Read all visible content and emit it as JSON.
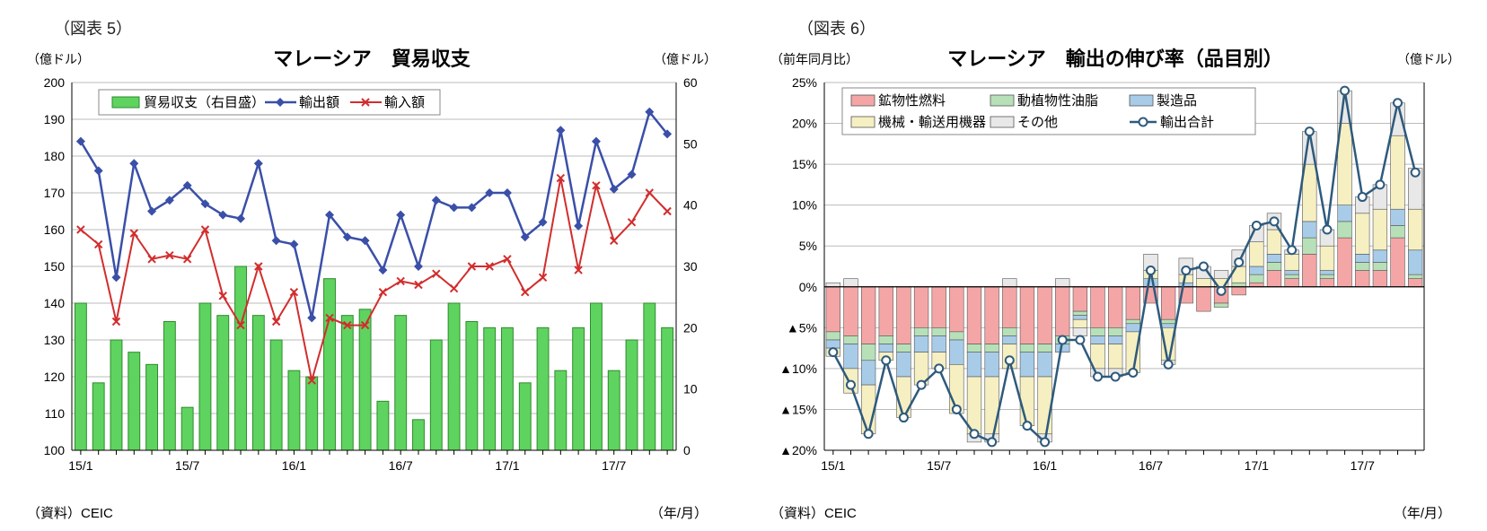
{
  "left": {
    "figLabel": "（図表 5）",
    "title": "マレーシア　貿易収支",
    "yLeftLabel": "（億ドル）",
    "yRightLabel": "（億ドル）",
    "source": "（資料）CEIC",
    "xUnit": "（年/月）",
    "legend": {
      "bars": "貿易収支（右目盛）",
      "exports": "輸出額",
      "imports": "輸入額"
    },
    "xTicks": [
      "15/1",
      "15/7",
      "16/1",
      "16/7",
      "17/1",
      "17/7"
    ],
    "xTickIdx": [
      0,
      6,
      12,
      18,
      24,
      30
    ],
    "yLeft": {
      "min": 100,
      "max": 200,
      "step": 10
    },
    "yRight": {
      "min": 0,
      "max": 60,
      "step": 10
    },
    "n": 34,
    "colors": {
      "bar": "#5fd35f",
      "barBorder": "#2e8b2e",
      "exports": "#3a4fa8",
      "exportsMarker": "#3a4fa8",
      "imports": "#d22d2d",
      "grid": "#bfbfbf",
      "bg": "#ffffff"
    },
    "bars": [
      24,
      11,
      18,
      16,
      14,
      21,
      7,
      24,
      22,
      30,
      22,
      18,
      13,
      12,
      28,
      22,
      23,
      8,
      22,
      5,
      18,
      24,
      21,
      20,
      20,
      11,
      20,
      13,
      20,
      24,
      13,
      18,
      24,
      20
    ],
    "exports": [
      184,
      176,
      147,
      178,
      165,
      168,
      172,
      167,
      164,
      163,
      178,
      157,
      156,
      136,
      164,
      158,
      157,
      149,
      164,
      150,
      168,
      166,
      166,
      170,
      170,
      158,
      162,
      187,
      161,
      184,
      171,
      175,
      192,
      186
    ],
    "imports": [
      160,
      156,
      135,
      159,
      152,
      153,
      152,
      160,
      142,
      134,
      150,
      135,
      143,
      119,
      136,
      134,
      134,
      143,
      146,
      145,
      148,
      144,
      150,
      150,
      152,
      143,
      147,
      174,
      149,
      172,
      157,
      162,
      170,
      165
    ]
  },
  "right": {
    "figLabel": "（図表 6）",
    "title": "マレーシア　輸出の伸び率（品目別）",
    "yLeftLabel": "（前年同月比）",
    "yRightLabel": "（億ドル）",
    "source": "（資料）CEIC",
    "xUnit": "（年/月）",
    "legend": {
      "mineral": "鉱物性燃料",
      "fats": "動植物性油脂",
      "manuf": "製造品",
      "machinery": "機械・輸送用機器",
      "other": "その他",
      "total": "輸出合計"
    },
    "xTicks": [
      "15/1",
      "15/7",
      "16/1",
      "16/7",
      "17/1",
      "17/7"
    ],
    "xTickIdx": [
      0,
      6,
      12,
      18,
      24,
      30
    ],
    "y": {
      "min": -20,
      "max": 25,
      "step": 5
    },
    "n": 34,
    "colors": {
      "mineral": "#f4a6a6",
      "fats": "#b8e0b8",
      "manuf": "#a8cce8",
      "machinery": "#f5efc2",
      "other": "#e8e8e8",
      "lineTotal": "#2e5a7c",
      "markerFill": "#ffffff",
      "border": "#555",
      "grid": "#bfbfbf",
      "bg": "#ffffff"
    },
    "stacks": [
      {
        "mineral": -5.5,
        "fats": -1,
        "manuf": -1,
        "machinery": -1,
        "other": 0.5
      },
      {
        "mineral": -6,
        "fats": -1,
        "manuf": -3,
        "machinery": -3,
        "other": 1
      },
      {
        "mineral": -7,
        "fats": -2,
        "manuf": -3,
        "machinery": -6,
        "other": 0
      },
      {
        "mineral": -6,
        "fats": -1,
        "manuf": -1,
        "machinery": -1,
        "other": 0
      },
      {
        "mineral": -7,
        "fats": -1,
        "manuf": -3,
        "machinery": -5,
        "other": 0
      },
      {
        "mineral": -5,
        "fats": -1,
        "manuf": -2,
        "machinery": -4,
        "other": 0
      },
      {
        "mineral": -5,
        "fats": -1,
        "manuf": -2,
        "machinery": -2,
        "other": 0
      },
      {
        "mineral": -5.5,
        "fats": -1,
        "manuf": -3,
        "machinery": -6,
        "other": 0
      },
      {
        "mineral": -7,
        "fats": -1,
        "manuf": -3,
        "machinery": -7,
        "other": -1
      },
      {
        "mineral": -7,
        "fats": -1,
        "manuf": -3,
        "machinery": -7,
        "other": -1
      },
      {
        "mineral": -5,
        "fats": -1,
        "manuf": -1,
        "machinery": -3,
        "other": 1
      },
      {
        "mineral": -7,
        "fats": -1,
        "manuf": -3,
        "machinery": -6,
        "other": 0
      },
      {
        "mineral": -7,
        "fats": -1,
        "manuf": -3,
        "machinery": -7,
        "other": -1
      },
      {
        "mineral": -6,
        "fats": -1,
        "manuf": -1,
        "machinery": 0,
        "other": 1
      },
      {
        "mineral": -3,
        "fats": -0.5,
        "manuf": -0.5,
        "machinery": -1,
        "other": -1
      },
      {
        "mineral": -5,
        "fats": -1,
        "manuf": -1,
        "machinery": -3,
        "other": -1
      },
      {
        "mineral": -5,
        "fats": -1,
        "manuf": -1,
        "machinery": -3,
        "other": -1
      },
      {
        "mineral": -4,
        "fats": -0.5,
        "manuf": -1,
        "machinery": -5,
        "other": 0
      },
      {
        "mineral": -2,
        "fats": 0,
        "manuf": 1,
        "machinery": 1,
        "other": 2
      },
      {
        "mineral": -4,
        "fats": -0.5,
        "manuf": -0.5,
        "machinery": -4,
        "other": -0.5
      },
      {
        "mineral": -2,
        "fats": 0,
        "manuf": 0.5,
        "machinery": 1,
        "other": 2
      },
      {
        "mineral": -3,
        "fats": 0,
        "manuf": 0,
        "machinery": 1,
        "other": 1.5
      },
      {
        "mineral": -2,
        "fats": -0.5,
        "manuf": 0,
        "machinery": 1,
        "other": 1
      },
      {
        "mineral": -1,
        "fats": 0.5,
        "manuf": 0,
        "machinery": 2,
        "other": 2
      },
      {
        "mineral": 0.5,
        "fats": 1,
        "manuf": 1,
        "machinery": 3,
        "other": 2
      },
      {
        "mineral": 2,
        "fats": 1,
        "manuf": 1,
        "machinery": 3,
        "other": 2
      },
      {
        "mineral": 1,
        "fats": 0.5,
        "manuf": 0.5,
        "machinery": 2,
        "other": 0.5
      },
      {
        "mineral": 4,
        "fats": 2,
        "manuf": 2,
        "machinery": 7,
        "other": 4
      },
      {
        "mineral": 1,
        "fats": 0.5,
        "manuf": 0.5,
        "machinery": 3,
        "other": 2
      },
      {
        "mineral": 6,
        "fats": 2,
        "manuf": 2,
        "machinery": 10,
        "other": 4
      },
      {
        "mineral": 2,
        "fats": 1,
        "manuf": 1,
        "machinery": 5,
        "other": 2
      },
      {
        "mineral": 2,
        "fats": 1,
        "manuf": 1.5,
        "machinery": 5,
        "other": 3
      },
      {
        "mineral": 6,
        "fats": 1.5,
        "manuf": 2,
        "machinery": 9,
        "other": 4
      },
      {
        "mineral": 1,
        "fats": 0.5,
        "manuf": 3,
        "machinery": 5,
        "other": 5
      }
    ],
    "total": [
      -8,
      -12,
      -18,
      -9,
      -16,
      -12,
      -10,
      -15,
      -18,
      -19,
      -9,
      -17,
      -19,
      -6.5,
      -6.5,
      -11,
      -11,
      -10.5,
      2,
      -9.5,
      2,
      2.5,
      -0.5,
      3,
      7.5,
      8,
      4.5,
      19,
      7,
      24,
      11,
      12.5,
      22.5,
      14
    ]
  }
}
